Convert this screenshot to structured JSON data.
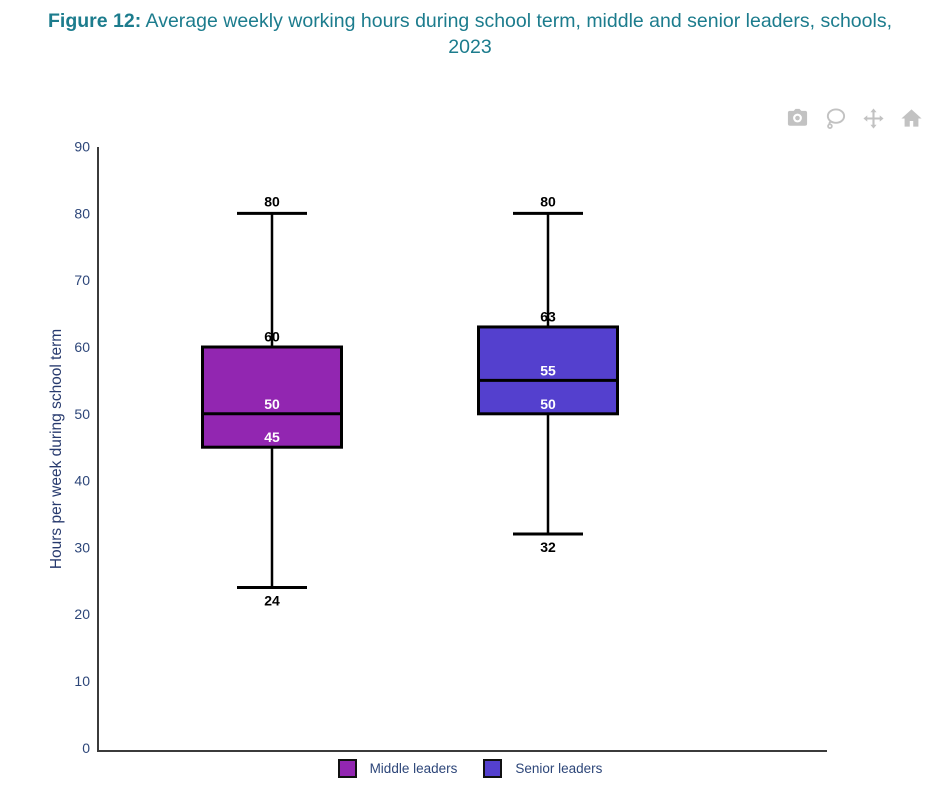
{
  "header": {
    "figure_label": "Figure 12:",
    "title_line1": "Average weekly working hours during school term, middle and senior leaders, schools,",
    "title_line2": "2023"
  },
  "toolbar": {
    "icons": [
      "camera-icon",
      "lasso-icon",
      "pan-icon",
      "home-icon"
    ]
  },
  "chart_data": {
    "type": "box",
    "title": "Figure 12: Average weekly working hours during school term, middle and senior leaders, schools, 2023",
    "xlabel": "",
    "ylabel": "Hours per week during school term",
    "ylim": [
      0,
      90
    ],
    "ytick_step": 10,
    "yticks": [
      0,
      10,
      20,
      30,
      40,
      50,
      60,
      70,
      80,
      90
    ],
    "grid": false,
    "legend_position": "bottom",
    "series": [
      {
        "name": "Middle leaders",
        "color": "#9226B1",
        "whisker_min": 24,
        "q1": 45,
        "median": 50,
        "q3": 60,
        "whisker_max": 80
      },
      {
        "name": "Senior leaders",
        "color": "#5440CE",
        "whisker_min": 32,
        "q1": 50,
        "median": 55,
        "q3": 63,
        "whisker_max": 80
      }
    ]
  },
  "colors": {
    "title_text": "#1C7C8D",
    "axis_text": "#2D4679",
    "y_title_text": "#273A6E",
    "axis_line": "#3B3B3B",
    "box_stroke": "#000000",
    "label_dark": "#000000",
    "label_light": "#FFFFFF",
    "modebar_icon": "#C2C2C2"
  }
}
